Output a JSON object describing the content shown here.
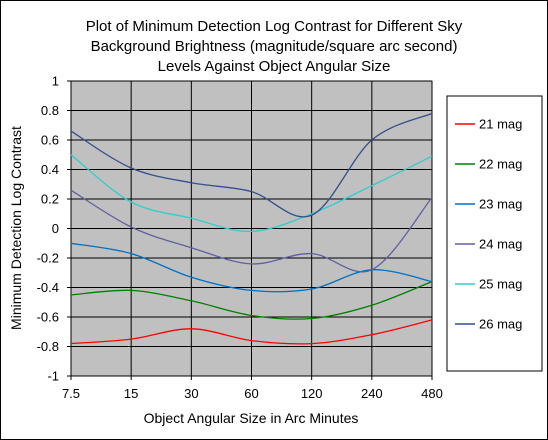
{
  "chart_data": {
    "type": "line",
    "title_lines": [
      "Plot of Minimum Detection Log Contrast for Different Sky",
      "Background Brightness (magnitude/square arc second)",
      "Levels Against Object Angular Size"
    ],
    "xlabel": "Object Angular Size in Arc Minutes",
    "ylabel": "Minimum Detection Log Contrast",
    "categories": [
      "7.5",
      "15",
      "30",
      "60",
      "120",
      "240",
      "480"
    ],
    "ylim": [
      -1,
      1
    ],
    "yticks": [
      "-1",
      "-0.8",
      "-0.6",
      "-0.4",
      "-0.2",
      "0",
      "0.2",
      "0.4",
      "0.6",
      "0.8",
      "1"
    ],
    "plot_background": "#c0c0c0",
    "grid": "vertical and horizontal",
    "legend_position": "right",
    "series": [
      {
        "name": "21 mag",
        "color": "#ff0000",
        "values": [
          -0.78,
          -0.75,
          -0.68,
          -0.76,
          -0.78,
          -0.72,
          -0.62
        ]
      },
      {
        "name": "22 mag",
        "color": "#008000",
        "values": [
          -0.45,
          -0.42,
          -0.49,
          -0.59,
          -0.61,
          -0.52,
          -0.36
        ]
      },
      {
        "name": "23 mag",
        "color": "#0070c0",
        "values": [
          -0.1,
          -0.17,
          -0.33,
          -0.42,
          -0.41,
          -0.28,
          -0.36
        ]
      },
      {
        "name": "24 mag",
        "color": "#6060a0",
        "values": [
          0.26,
          0.01,
          -0.13,
          -0.24,
          -0.17,
          -0.28,
          0.21
        ]
      },
      {
        "name": "25 mag",
        "color": "#33cccc",
        "values": [
          0.5,
          0.18,
          0.07,
          -0.02,
          0.1,
          0.29,
          0.49
        ]
      },
      {
        "name": "26 mag",
        "color": "#334f8c",
        "values": [
          0.66,
          0.41,
          0.31,
          0.25,
          0.09,
          0.6,
          0.78
        ]
      }
    ]
  }
}
